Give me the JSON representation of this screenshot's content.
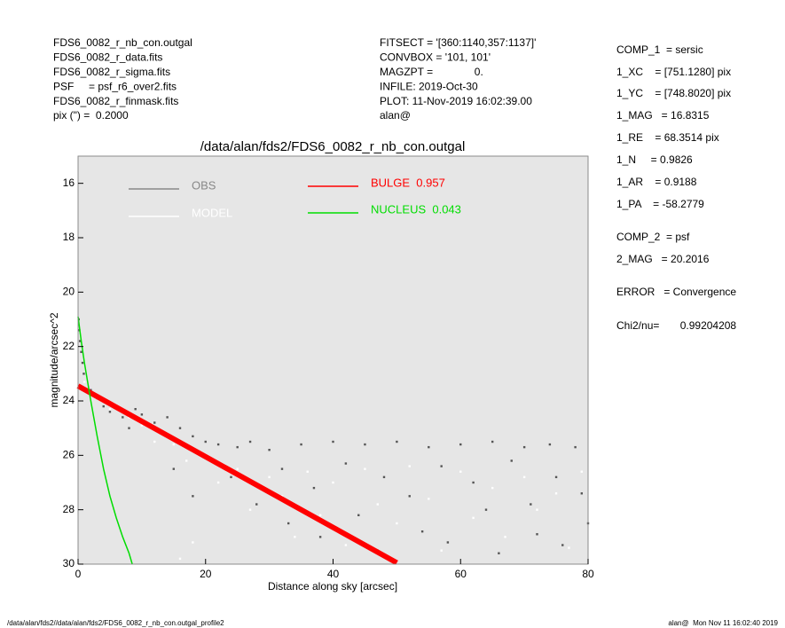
{
  "header": {
    "left": [
      "FDS6_0082_r_nb_con.outgal",
      "FDS6_0082_r_data.fits",
      "FDS6_0082_r_sigma.fits",
      "PSF     = psf_r6_over2.fits",
      "FDS6_0082_r_finmask.fits",
      "pix (\") =  0.2000"
    ],
    "center": [
      "FITSECT = '[360:1140,357:1137]'",
      "CONVBOX = '101, 101'",
      "MAGZPT =              0.",
      "INFILE: 2019-Oct-30",
      "PLOT: 11-Nov-2019 16:02:39.00",
      "alan@"
    ],
    "params": [
      "COMP_1  = sersic",
      "1_XC    = [751.1280] pix",
      "1_YC    = [748.8020] pix",
      "1_MAG   = 16.8315",
      "1_RE    = 68.3514 pix",
      "1_N     = 0.9826",
      "1_AR    = 0.9188",
      "1_PA    = -58.2779",
      "COMP_2  = psf",
      "2_MAG   = 20.2016",
      "ERROR   = Convergence",
      "Chi2/nu=       0.99204208"
    ]
  },
  "footer": {
    "left": "/data/alan/fds2//data/alan/fds2/FDS6_0082_r_nb_con.outgal_profile2",
    "right": "alan@  Mon Nov 11 16:02:40 2019"
  },
  "chart_data": {
    "type": "scatter",
    "title": "/data/alan/fds2/FDS6_0082_r_nb_con.outgal",
    "xlabel": "Distance along sky [arcsec]",
    "ylabel": "magnitude/arcsec^2",
    "xlim": [
      0,
      80
    ],
    "ylim": [
      30,
      15
    ],
    "xticks": [
      0,
      20,
      40,
      60,
      80
    ],
    "yticks": [
      16,
      18,
      20,
      22,
      24,
      26,
      28,
      30
    ],
    "background": "#e6e6e6",
    "series": [
      {
        "name": "OBS",
        "color": "#555555",
        "mode": "markers",
        "x": [
          0.1,
          0.2,
          0.3,
          0.5,
          0.7,
          0.9,
          2,
          3,
          4,
          5,
          6,
          7,
          8,
          9,
          10,
          12,
          14,
          15,
          16,
          18,
          18,
          20,
          22,
          24,
          25,
          27,
          28,
          30,
          32,
          33,
          35,
          37,
          38,
          40,
          42,
          44,
          45,
          47,
          48,
          50,
          52,
          54,
          55,
          57,
          58,
          60,
          62,
          64,
          65,
          66,
          68,
          70,
          71,
          72,
          74,
          75,
          76,
          78,
          79,
          80
        ],
        "values": [
          21.0,
          21.4,
          21.8,
          22.2,
          22.6,
          23.0,
          23.6,
          23.9,
          24.2,
          24.4,
          24.2,
          24.6,
          25.0,
          24.3,
          24.5,
          24.8,
          24.6,
          26.5,
          25.0,
          25.3,
          27.5,
          25.5,
          25.6,
          26.8,
          25.7,
          25.5,
          27.8,
          25.8,
          26.5,
          28.5,
          25.6,
          27.2,
          29.0,
          25.5,
          26.3,
          28.2,
          25.6,
          29.5,
          26.8,
          25.5,
          27.5,
          28.8,
          25.7,
          26.4,
          29.2,
          25.6,
          27.0,
          28.0,
          25.5,
          29.6,
          26.2,
          25.7,
          27.8,
          28.9,
          25.6,
          26.8,
          29.3,
          25.7,
          27.4,
          28.5
        ]
      },
      {
        "name": "MODEL",
        "color": "#ffffff",
        "mode": "markers",
        "x": [
          1,
          3,
          5,
          8,
          10,
          12,
          15,
          17,
          20,
          22,
          25,
          27,
          30,
          32,
          34,
          36,
          38,
          40,
          42,
          45,
          47,
          50,
          52,
          55,
          57,
          60,
          62,
          65,
          67,
          70,
          72,
          75,
          77,
          79,
          16,
          18
        ],
        "values": [
          23.3,
          23.8,
          24.3,
          24.6,
          24.9,
          25.5,
          25.6,
          26.2,
          26.0,
          27.0,
          26.5,
          28.0,
          26.8,
          27.5,
          29.0,
          26.6,
          28.2,
          27.0,
          29.3,
          26.5,
          27.8,
          28.5,
          26.4,
          27.6,
          29.5,
          26.6,
          28.3,
          27.2,
          29.0,
          26.8,
          28.0,
          27.4,
          29.4,
          26.6,
          29.8,
          29.2
        ]
      },
      {
        "name": "BULGE  0.957",
        "color": "#ff0000",
        "mode": "line",
        "x": [
          0,
          10,
          20,
          30,
          40,
          50
        ],
        "values": [
          23.45,
          24.75,
          26.05,
          27.35,
          28.65,
          29.95
        ]
      },
      {
        "name": "NUCLEUS  0.043",
        "color": "#00dd00",
        "mode": "line",
        "x": [
          0,
          0.5,
          1,
          2,
          3,
          4,
          5,
          6,
          7,
          8,
          8.5
        ],
        "values": [
          20.9,
          21.8,
          22.6,
          24.0,
          25.3,
          26.5,
          27.5,
          28.3,
          29.0,
          29.6,
          30
        ]
      }
    ]
  }
}
